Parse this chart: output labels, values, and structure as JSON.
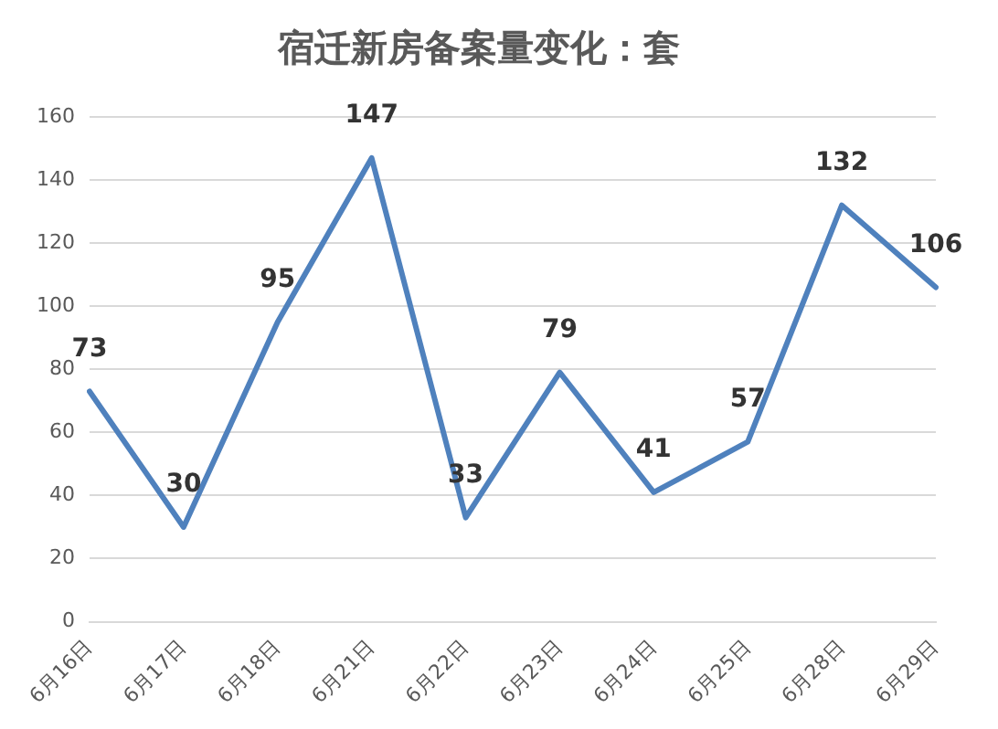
{
  "chart_data": {
    "type": "line",
    "title": "宿迁新房备案量变化：套",
    "categories": [
      "6月16日",
      "6月17日",
      "6月18日",
      "6月21日",
      "6月22日",
      "6月23日",
      "6月24日",
      "6月25日",
      "6月28日",
      "6月29日"
    ],
    "series": [
      {
        "color": "#4f81bd",
        "values": [
          73,
          30,
          95,
          147,
          33,
          79,
          41,
          57,
          132,
          106
        ]
      }
    ],
    "ylim": [
      0,
      160
    ],
    "yticks": [
      0,
      20,
      40,
      60,
      80,
      100,
      120,
      140,
      160
    ],
    "grid": "y",
    "legend": false,
    "marker": "none",
    "line_style": "solid",
    "data_labels": true
  }
}
